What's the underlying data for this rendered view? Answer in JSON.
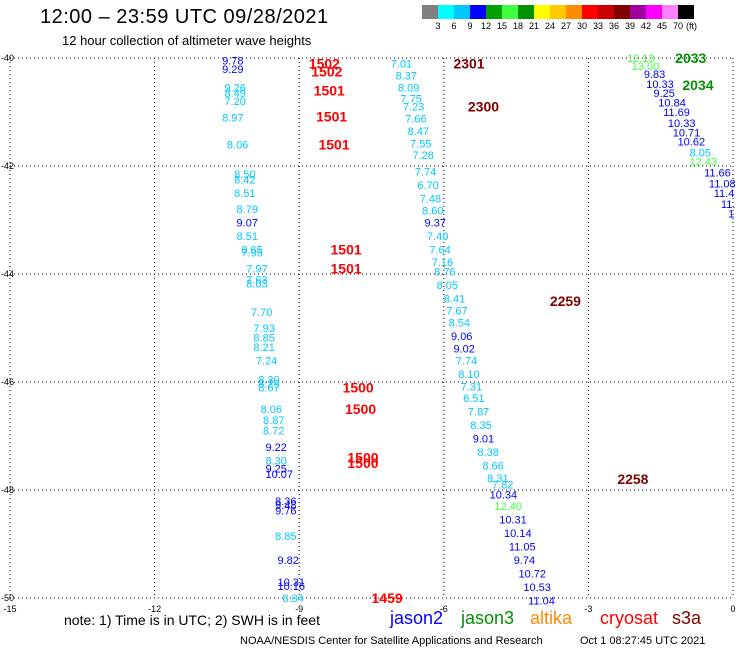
{
  "title": "12:00  –  23:59 UTC 09/28/2021",
  "subtitle": "12 hour collection of altimeter wave heights",
  "colorbar": {
    "colors": [
      "#808080",
      "#00ffff",
      "#00c8ff",
      "#0000ff",
      "#00a000",
      "#40ff40",
      "#009000",
      "#ffff00",
      "#ffc800",
      "#ff8c00",
      "#ff0000",
      "#c80000",
      "#800000",
      "#a000a0",
      "#ff00ff",
      "#ff80ff",
      "#000000"
    ],
    "labels": [
      "3",
      "6",
      "9",
      "12",
      "15",
      "18",
      "21",
      "24",
      "27",
      "30",
      "33",
      "36",
      "39",
      "42",
      "45",
      "70"
    ],
    "unit": "(ft)"
  },
  "note": "note:  1) Time is in UTC;  2) SWH is in feet",
  "satellites": [
    {
      "name": "jason2",
      "color": "#0000ff"
    },
    {
      "name": "jason3",
      "color": "#009000"
    },
    {
      "name": "altika",
      "color": "#ff8c00"
    },
    {
      "name": "cryosat",
      "color": "#ff0000"
    },
    {
      "name": "s3a",
      "color": "#800000"
    }
  ],
  "credit": "NOAA/NESDIS Center for Satellite Applications and Research",
  "credit_date": "Oct  1 08:27:45 UTC 2021",
  "chart_data": {
    "type": "scatter",
    "xlim": [
      -15,
      0
    ],
    "ylim": [
      -50,
      -40
    ],
    "x_ticks": [
      -15,
      -12,
      -9,
      -6,
      -3,
      0
    ],
    "y_ticks": [
      -40,
      -42,
      -44,
      -46,
      -48,
      -50
    ],
    "grid": true,
    "time_labels": [
      {
        "text": "1502",
        "x": -8.8,
        "y": -40.1,
        "color": "#ff0000"
      },
      {
        "text": "1502",
        "x": -8.75,
        "y": -40.25,
        "color": "#ff0000"
      },
      {
        "text": "1501",
        "x": -8.7,
        "y": -40.6,
        "color": "#ff0000"
      },
      {
        "text": "1501",
        "x": -8.65,
        "y": -41.08,
        "color": "#ff0000"
      },
      {
        "text": "1501",
        "x": -8.6,
        "y": -41.6,
        "color": "#ff0000"
      },
      {
        "text": "1501",
        "x": -8.35,
        "y": -43.55,
        "color": "#ff0000"
      },
      {
        "text": "1501",
        "x": -8.35,
        "y": -43.9,
        "color": "#ff0000"
      },
      {
        "text": "1500",
        "x": -8.1,
        "y": -46.1,
        "color": "#ff0000"
      },
      {
        "text": "1500",
        "x": -8.05,
        "y": -46.5,
        "color": "#ff0000"
      },
      {
        "text": "1500",
        "x": -8.0,
        "y": -47.4,
        "color": "#ff0000"
      },
      {
        "text": "1500",
        "x": -8.0,
        "y": -47.5,
        "color": "#ff0000"
      },
      {
        "text": "1459",
        "x": -7.5,
        "y": -50.0,
        "color": "#ff0000"
      },
      {
        "text": "2301",
        "x": -5.8,
        "y": -40.1,
        "color": "#800000"
      },
      {
        "text": "2300",
        "x": -5.5,
        "y": -40.9,
        "color": "#800000"
      },
      {
        "text": "2259",
        "x": -3.8,
        "y": -44.5,
        "color": "#800000"
      },
      {
        "text": "2258",
        "x": -2.4,
        "y": -47.8,
        "color": "#800000"
      },
      {
        "text": "2033",
        "x": -1.2,
        "y": -40.0,
        "color": "#009000"
      },
      {
        "text": "2034",
        "x": -1.05,
        "y": -40.5,
        "color": "#009000"
      }
    ],
    "points": [
      {
        "text": "9.78",
        "x": -10.6,
        "y": -40.05,
        "color": "#0000ff"
      },
      {
        "text": "9.29",
        "x": -10.6,
        "y": -40.2,
        "color": "#0000ff"
      },
      {
        "text": "9.26",
        "x": -10.55,
        "y": -40.55,
        "color": "#00c8ff"
      },
      {
        "text": "8.49",
        "x": -10.55,
        "y": -40.65,
        "color": "#00c8ff"
      },
      {
        "text": "7.20",
        "x": -10.55,
        "y": -40.8,
        "color": "#00c8ff"
      },
      {
        "text": "8.97",
        "x": -10.6,
        "y": -41.1,
        "color": "#00c8ff"
      },
      {
        "text": "8.06",
        "x": -10.5,
        "y": -41.6,
        "color": "#00c8ff"
      },
      {
        "text": "8.50",
        "x": -10.35,
        "y": -42.15,
        "color": "#00c8ff"
      },
      {
        "text": "8.42",
        "x": -10.35,
        "y": -42.25,
        "color": "#00c8ff"
      },
      {
        "text": "8.51",
        "x": -10.35,
        "y": -42.5,
        "color": "#00c8ff"
      },
      {
        "text": "8.79",
        "x": -10.3,
        "y": -42.8,
        "color": "#00c8ff"
      },
      {
        "text": "9.07",
        "x": -10.3,
        "y": -43.05,
        "color": "#0000ff"
      },
      {
        "text": "8.51",
        "x": -10.3,
        "y": -43.3,
        "color": "#00c8ff"
      },
      {
        "text": "8.65",
        "x": -10.2,
        "y": -43.55,
        "color": "#00c8ff"
      },
      {
        "text": "7.95",
        "x": -10.2,
        "y": -43.6,
        "color": "#00c8ff"
      },
      {
        "text": "7.97",
        "x": -10.1,
        "y": -43.9,
        "color": "#00c8ff"
      },
      {
        "text": "7.63",
        "x": -10.1,
        "y": -44.1,
        "color": "#00c8ff"
      },
      {
        "text": "8.03",
        "x": -10.1,
        "y": -44.18,
        "color": "#00c8ff"
      },
      {
        "text": "7.70",
        "x": -10.0,
        "y": -44.7,
        "color": "#00c8ff"
      },
      {
        "text": "7.93",
        "x": -9.95,
        "y": -45.0,
        "color": "#00c8ff"
      },
      {
        "text": "8.85",
        "x": -9.95,
        "y": -45.18,
        "color": "#00c8ff"
      },
      {
        "text": "8.21",
        "x": -9.95,
        "y": -45.35,
        "color": "#00c8ff"
      },
      {
        "text": "7.24",
        "x": -9.9,
        "y": -45.6,
        "color": "#00c8ff"
      },
      {
        "text": "8.30",
        "x": -9.85,
        "y": -45.95,
        "color": "#00c8ff"
      },
      {
        "text": "8.25",
        "x": -9.85,
        "y": -46.03,
        "color": "#00c8ff"
      },
      {
        "text": "8.67",
        "x": -9.85,
        "y": -46.1,
        "color": "#00c8ff"
      },
      {
        "text": "8.06",
        "x": -9.8,
        "y": -46.5,
        "color": "#00c8ff"
      },
      {
        "text": "8.87",
        "x": -9.75,
        "y": -46.7,
        "color": "#00c8ff"
      },
      {
        "text": "8.72",
        "x": -9.75,
        "y": -46.9,
        "color": "#00c8ff"
      },
      {
        "text": "9.22",
        "x": -9.7,
        "y": -47.2,
        "color": "#0000ff"
      },
      {
        "text": "8.30",
        "x": -9.7,
        "y": -47.45,
        "color": "#00c8ff"
      },
      {
        "text": "9.25",
        "x": -9.7,
        "y": -47.6,
        "color": "#0000ff"
      },
      {
        "text": "10.07",
        "x": -9.7,
        "y": -47.7,
        "color": "#0000ff"
      },
      {
        "text": "8.36",
        "x": -9.5,
        "y": -48.2,
        "color": "#0000ff"
      },
      {
        "text": "9.48",
        "x": -9.5,
        "y": -48.28,
        "color": "#0000ff"
      },
      {
        "text": "9.76",
        "x": -9.5,
        "y": -48.38,
        "color": "#0000ff"
      },
      {
        "text": "8.85",
        "x": -9.5,
        "y": -48.85,
        "color": "#00c8ff"
      },
      {
        "text": "9.82",
        "x": -9.45,
        "y": -49.3,
        "color": "#0000ff"
      },
      {
        "text": "10.31",
        "x": -9.45,
        "y": -49.7,
        "color": "#0000ff"
      },
      {
        "text": "10.16",
        "x": -9.45,
        "y": -49.78,
        "color": "#0000ff"
      },
      {
        "text": "8.84",
        "x": -9.35,
        "y": -50.0,
        "color": "#00c8ff"
      },
      {
        "text": "7.01",
        "x": -7.1,
        "y": -40.1,
        "color": "#00c8ff"
      },
      {
        "text": "8.37",
        "x": -7.0,
        "y": -40.32,
        "color": "#00c8ff"
      },
      {
        "text": "8.09",
        "x": -6.95,
        "y": -40.55,
        "color": "#00c8ff"
      },
      {
        "text": "7.75",
        "x": -6.9,
        "y": -40.75,
        "color": "#00c8ff"
      },
      {
        "text": "7.23",
        "x": -6.85,
        "y": -40.9,
        "color": "#00c8ff"
      },
      {
        "text": "7.66",
        "x": -6.8,
        "y": -41.12,
        "color": "#00c8ff"
      },
      {
        "text": "8.47",
        "x": -6.75,
        "y": -41.35,
        "color": "#00c8ff"
      },
      {
        "text": "7.55",
        "x": -6.7,
        "y": -41.58,
        "color": "#00c8ff"
      },
      {
        "text": "7.28",
        "x": -6.65,
        "y": -41.8,
        "color": "#00c8ff"
      },
      {
        "text": "7.74",
        "x": -6.6,
        "y": -42.1,
        "color": "#00c8ff"
      },
      {
        "text": "6.70",
        "x": -6.55,
        "y": -42.35,
        "color": "#00c8ff"
      },
      {
        "text": "7.48",
        "x": -6.5,
        "y": -42.6,
        "color": "#00c8ff"
      },
      {
        "text": "8.60",
        "x": -6.45,
        "y": -42.82,
        "color": "#00c8ff"
      },
      {
        "text": "9.37",
        "x": -6.4,
        "y": -43.05,
        "color": "#0000ff"
      },
      {
        "text": "7.40",
        "x": -6.35,
        "y": -43.3,
        "color": "#00c8ff"
      },
      {
        "text": "7.64",
        "x": -6.3,
        "y": -43.55,
        "color": "#00c8ff"
      },
      {
        "text": "7.16",
        "x": -6.25,
        "y": -43.78,
        "color": "#00c8ff"
      },
      {
        "text": "8.76",
        "x": -6.2,
        "y": -43.95,
        "color": "#00c8ff"
      },
      {
        "text": "8.05",
        "x": -6.15,
        "y": -44.2,
        "color": "#00c8ff"
      },
      {
        "text": "8.41",
        "x": -6.0,
        "y": -44.45,
        "color": "#00c8ff"
      },
      {
        "text": "7.67",
        "x": -5.95,
        "y": -44.68,
        "color": "#00c8ff"
      },
      {
        "text": "8.54",
        "x": -5.9,
        "y": -44.9,
        "color": "#00c8ff"
      },
      {
        "text": "9.06",
        "x": -5.85,
        "y": -45.15,
        "color": "#0000ff"
      },
      {
        "text": "9.02",
        "x": -5.8,
        "y": -45.38,
        "color": "#0000ff"
      },
      {
        "text": "7.74",
        "x": -5.75,
        "y": -45.6,
        "color": "#00c8ff"
      },
      {
        "text": "8.10",
        "x": -5.7,
        "y": -45.85,
        "color": "#00c8ff"
      },
      {
        "text": "7.31",
        "x": -5.65,
        "y": -46.08,
        "color": "#00c8ff"
      },
      {
        "text": "6.51",
        "x": -5.6,
        "y": -46.3,
        "color": "#00c8ff"
      },
      {
        "text": "7.87",
        "x": -5.5,
        "y": -46.55,
        "color": "#00c8ff"
      },
      {
        "text": "8.35",
        "x": -5.45,
        "y": -46.8,
        "color": "#00c8ff"
      },
      {
        "text": "9.01",
        "x": -5.4,
        "y": -47.05,
        "color": "#0000ff"
      },
      {
        "text": "8.38",
        "x": -5.3,
        "y": -47.3,
        "color": "#00c8ff"
      },
      {
        "text": "8.66",
        "x": -5.2,
        "y": -47.55,
        "color": "#00c8ff"
      },
      {
        "text": "8.31",
        "x": -5.1,
        "y": -47.78,
        "color": "#00c8ff"
      },
      {
        "text": "7.82",
        "x": -5.0,
        "y": -47.9,
        "color": "#00c8ff"
      },
      {
        "text": "10.34",
        "x": -5.05,
        "y": -48.08,
        "color": "#0000ff"
      },
      {
        "text": "12.40",
        "x": -4.95,
        "y": -48.3,
        "color": "#40ff40"
      },
      {
        "text": "10.31",
        "x": -4.85,
        "y": -48.55,
        "color": "#0000ff"
      },
      {
        "text": "10.14",
        "x": -4.75,
        "y": -48.8,
        "color": "#0000ff"
      },
      {
        "text": "11.05",
        "x": -4.65,
        "y": -49.05,
        "color": "#0000ff"
      },
      {
        "text": "9.74",
        "x": -4.55,
        "y": -49.3,
        "color": "#0000ff"
      },
      {
        "text": "10.72",
        "x": -4.45,
        "y": -49.55,
        "color": "#0000ff"
      },
      {
        "text": "10.53",
        "x": -4.35,
        "y": -49.8,
        "color": "#0000ff"
      },
      {
        "text": "11.04",
        "x": -4.25,
        "y": -50.05,
        "color": "#0000ff"
      },
      {
        "text": "12.13",
        "x": -2.2,
        "y": -40.0,
        "color": "#40ff40"
      },
      {
        "text": "13.00",
        "x": -2.1,
        "y": -40.15,
        "color": "#40ff40"
      },
      {
        "text": "9.83",
        "x": -1.85,
        "y": -40.3,
        "color": "#0000ff"
      },
      {
        "text": "10.33",
        "x": -1.8,
        "y": -40.48,
        "color": "#0000ff"
      },
      {
        "text": "9.25",
        "x": -1.65,
        "y": -40.65,
        "color": "#0000ff"
      },
      {
        "text": "10.84",
        "x": -1.55,
        "y": -40.82,
        "color": "#0000ff"
      },
      {
        "text": "11.69",
        "x": -1.45,
        "y": -41.0,
        "color": "#0000ff"
      },
      {
        "text": "10.33",
        "x": -1.35,
        "y": -41.2,
        "color": "#0000ff"
      },
      {
        "text": "10.71",
        "x": -1.25,
        "y": -41.38,
        "color": "#0000ff"
      },
      {
        "text": "10.62",
        "x": -1.15,
        "y": -41.55,
        "color": "#0000ff"
      },
      {
        "text": "8.05",
        "x": -0.9,
        "y": -41.75,
        "color": "#00c8ff"
      },
      {
        "text": "12.43",
        "x": -0.9,
        "y": -41.92,
        "color": "#40ff40"
      },
      {
        "text": "11.66",
        "x": -0.6,
        "y": -42.12,
        "color": "#0000ff"
      },
      {
        "text": "11.08",
        "x": -0.5,
        "y": -42.32,
        "color": "#0000ff"
      },
      {
        "text": "11.4",
        "x": -0.4,
        "y": -42.5,
        "color": "#0000ff"
      },
      {
        "text": "11.",
        "x": -0.25,
        "y": -42.7,
        "color": "#0000ff"
      },
      {
        "text": "1",
        "x": -0.1,
        "y": -42.88,
        "color": "#0000ff"
      }
    ]
  }
}
